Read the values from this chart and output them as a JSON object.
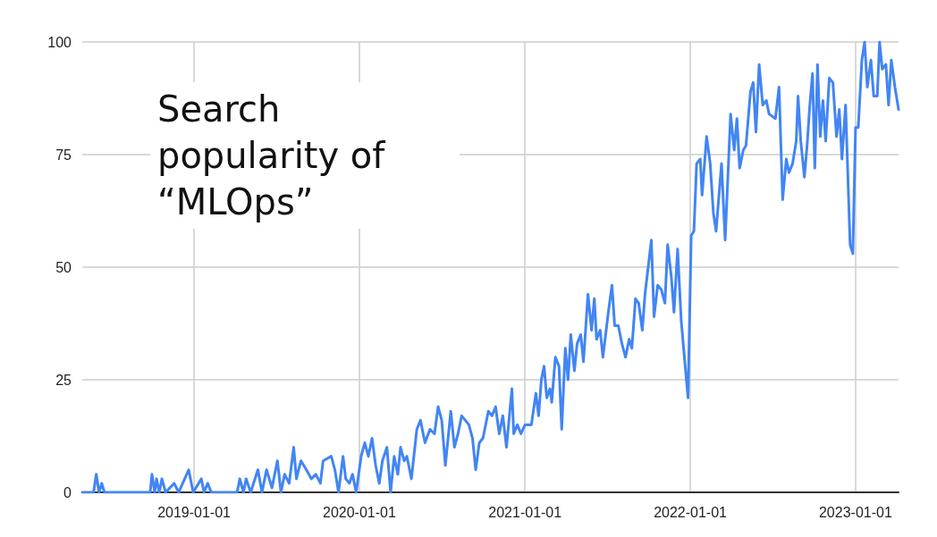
{
  "chart_data": {
    "type": "line",
    "title": "Search popularity of “MLOps”",
    "x": [
      "2018-04-29",
      "2018-05-24",
      "2018-05-30",
      "2018-06-05",
      "2018-06-11",
      "2018-06-17",
      "2018-09-26",
      "2018-09-30",
      "2018-10-06",
      "2018-10-10",
      "2018-10-16",
      "2018-10-22",
      "2018-10-30",
      "2018-11-18",
      "2018-11-28",
      "2018-12-20",
      "2018-12-30",
      "2019-01-17",
      "2019-01-23",
      "2019-01-31",
      "2019-02-08",
      "2019-04-06",
      "2019-04-12",
      "2019-04-20",
      "2019-04-26",
      "2019-05-06",
      "2019-05-22",
      "2019-05-31",
      "2019-06-10",
      "2019-06-22",
      "2019-07-04",
      "2019-07-12",
      "2019-07-20",
      "2019-07-30",
      "2019-08-09",
      "2019-08-15",
      "2019-08-25",
      "2019-09-06",
      "2019-09-17",
      "2019-09-27",
      "2019-10-07",
      "2019-10-13",
      "2019-10-31",
      "2019-11-08",
      "2019-11-16",
      "2019-11-26",
      "2019-12-02",
      "2019-12-10",
      "2019-12-17",
      "2019-12-25",
      "2020-01-05",
      "2020-01-13",
      "2020-01-21",
      "2020-01-29",
      "2020-02-06",
      "2020-02-14",
      "2020-02-21",
      "2020-03-02",
      "2020-03-10",
      "2020-03-18",
      "2020-03-26",
      "2020-04-01",
      "2020-04-09",
      "2020-04-15",
      "2020-04-25",
      "2020-05-07",
      "2020-05-15",
      "2020-05-25",
      "2020-06-05",
      "2020-06-15",
      "2020-06-23",
      "2020-07-01",
      "2020-07-09",
      "2020-07-21",
      "2020-07-29",
      "2020-08-06",
      "2020-08-14",
      "2020-08-22",
      "2020-08-30",
      "2020-09-07",
      "2020-09-14",
      "2020-09-22",
      "2020-09-30",
      "2020-10-12",
      "2020-10-20",
      "2020-10-28",
      "2020-11-05",
      "2020-11-13",
      "2020-11-21",
      "2020-12-03",
      "2020-12-07",
      "2020-12-15",
      "2020-12-23",
      "2021-01-01",
      "2021-01-15",
      "2021-01-25",
      "2021-01-31",
      "2021-02-06",
      "2021-02-12",
      "2021-02-18",
      "2021-02-25",
      "2021-03-01",
      "2021-03-09",
      "2021-03-17",
      "2021-03-23",
      "2021-03-31",
      "2021-04-06",
      "2021-04-12",
      "2021-04-20",
      "2021-04-26",
      "2021-05-04",
      "2021-05-10",
      "2021-05-20",
      "2021-05-28",
      "2021-06-03",
      "2021-06-08",
      "2021-06-16",
      "2021-06-22",
      "2021-07-04",
      "2021-07-12",
      "2021-07-18",
      "2021-07-26",
      "2021-08-03",
      "2021-08-11",
      "2021-08-19",
      "2021-08-25",
      "2021-09-02",
      "2021-09-09",
      "2021-09-17",
      "2021-09-23",
      "2021-10-07",
      "2021-10-13",
      "2021-10-21",
      "2021-10-29",
      "2021-11-06",
      "2021-11-12",
      "2021-11-20",
      "2021-11-26",
      "2021-12-04",
      "2021-12-12",
      "2021-12-19",
      "2021-12-27",
      "2022-01-03",
      "2022-01-09",
      "2022-01-15",
      "2022-01-23",
      "2022-01-27",
      "2022-02-06",
      "2022-02-14",
      "2022-02-21",
      "2022-02-27",
      "2022-03-11",
      "2022-03-19",
      "2022-03-31",
      "2022-04-08",
      "2022-04-14",
      "2022-04-20",
      "2022-04-28",
      "2022-05-04",
      "2022-05-14",
      "2022-05-20",
      "2022-05-26",
      "2022-06-02",
      "2022-06-10",
      "2022-06-18",
      "2022-06-24",
      "2022-07-08",
      "2022-07-16",
      "2022-07-24",
      "2022-08-01",
      "2022-08-07",
      "2022-08-15",
      "2022-08-23",
      "2022-08-27",
      "2022-09-02",
      "2022-09-10",
      "2022-09-16",
      "2022-09-22",
      "2022-09-28",
      "2022-10-03",
      "2022-10-09",
      "2022-10-15",
      "2022-10-21",
      "2022-10-27",
      "2022-11-04",
      "2022-11-12",
      "2022-11-20",
      "2022-11-26",
      "2022-12-02",
      "2022-12-10",
      "2022-12-20",
      "2022-12-26",
      "2023-01-01",
      "2023-01-07",
      "2023-01-15",
      "2023-01-21",
      "2023-01-27",
      "2023-02-04",
      "2023-02-10",
      "2023-02-18",
      "2023-02-23",
      "2023-03-01",
      "2023-03-09",
      "2023-03-15",
      "2023-03-21",
      "2023-03-29",
      "2023-04-06"
    ],
    "series": [
      {
        "color": "#4285f4",
        "values": [
          0,
          0,
          4,
          0,
          2,
          0,
          0,
          4,
          0,
          3,
          0,
          3,
          0,
          2,
          0,
          5,
          0,
          3,
          0,
          2,
          0,
          0,
          3,
          0,
          3,
          0,
          5,
          0,
          5,
          1,
          7,
          0,
          4,
          2,
          10,
          3,
          7,
          5,
          3,
          4,
          2,
          7,
          8,
          5,
          0,
          8,
          3,
          2,
          4,
          0,
          8,
          11,
          8,
          12,
          6,
          2,
          7,
          10,
          0,
          8,
          4,
          10,
          7,
          8,
          3,
          14,
          16,
          11,
          14,
          13,
          19,
          16,
          6,
          18,
          10,
          13,
          17,
          16,
          15,
          12,
          5,
          11,
          12,
          18,
          17,
          19,
          13,
          17,
          10,
          23,
          13,
          15,
          13,
          15,
          15,
          22,
          17,
          25,
          28,
          21,
          23,
          20,
          30,
          28,
          14,
          32,
          25,
          35,
          27,
          33,
          35,
          29,
          44,
          36,
          43,
          34,
          36,
          30,
          40,
          46,
          37,
          37,
          33,
          30,
          34,
          32,
          43,
          42,
          36,
          44,
          56,
          39,
          46,
          45,
          42,
          55,
          48,
          40,
          54,
          38,
          30,
          21,
          57,
          58,
          73,
          74,
          66,
          79,
          73,
          62,
          58,
          73,
          56,
          84,
          76,
          83,
          72,
          76,
          77,
          89,
          91,
          80,
          95,
          86,
          87,
          84,
          83,
          90,
          65,
          74,
          71,
          73,
          78,
          88,
          78,
          70,
          77,
          86,
          93,
          72,
          95,
          79,
          87,
          78,
          92,
          91,
          79,
          85,
          74,
          86,
          55,
          53,
          81,
          81,
          96,
          100,
          90,
          96,
          88,
          88,
          100,
          94,
          95,
          86,
          96,
          90,
          85
        ]
      }
    ],
    "xlim": [
      "2018-04-29",
      "2023-04-06"
    ],
    "xticks": [
      "2019-01-01",
      "2020-01-01",
      "2021-01-01",
      "2022-01-01",
      "2023-01-01"
    ],
    "ylim": [
      0,
      100
    ],
    "yticks": [
      0,
      25,
      50,
      75,
      100
    ],
    "grid": true,
    "marker": "none",
    "line_style": "solid"
  }
}
